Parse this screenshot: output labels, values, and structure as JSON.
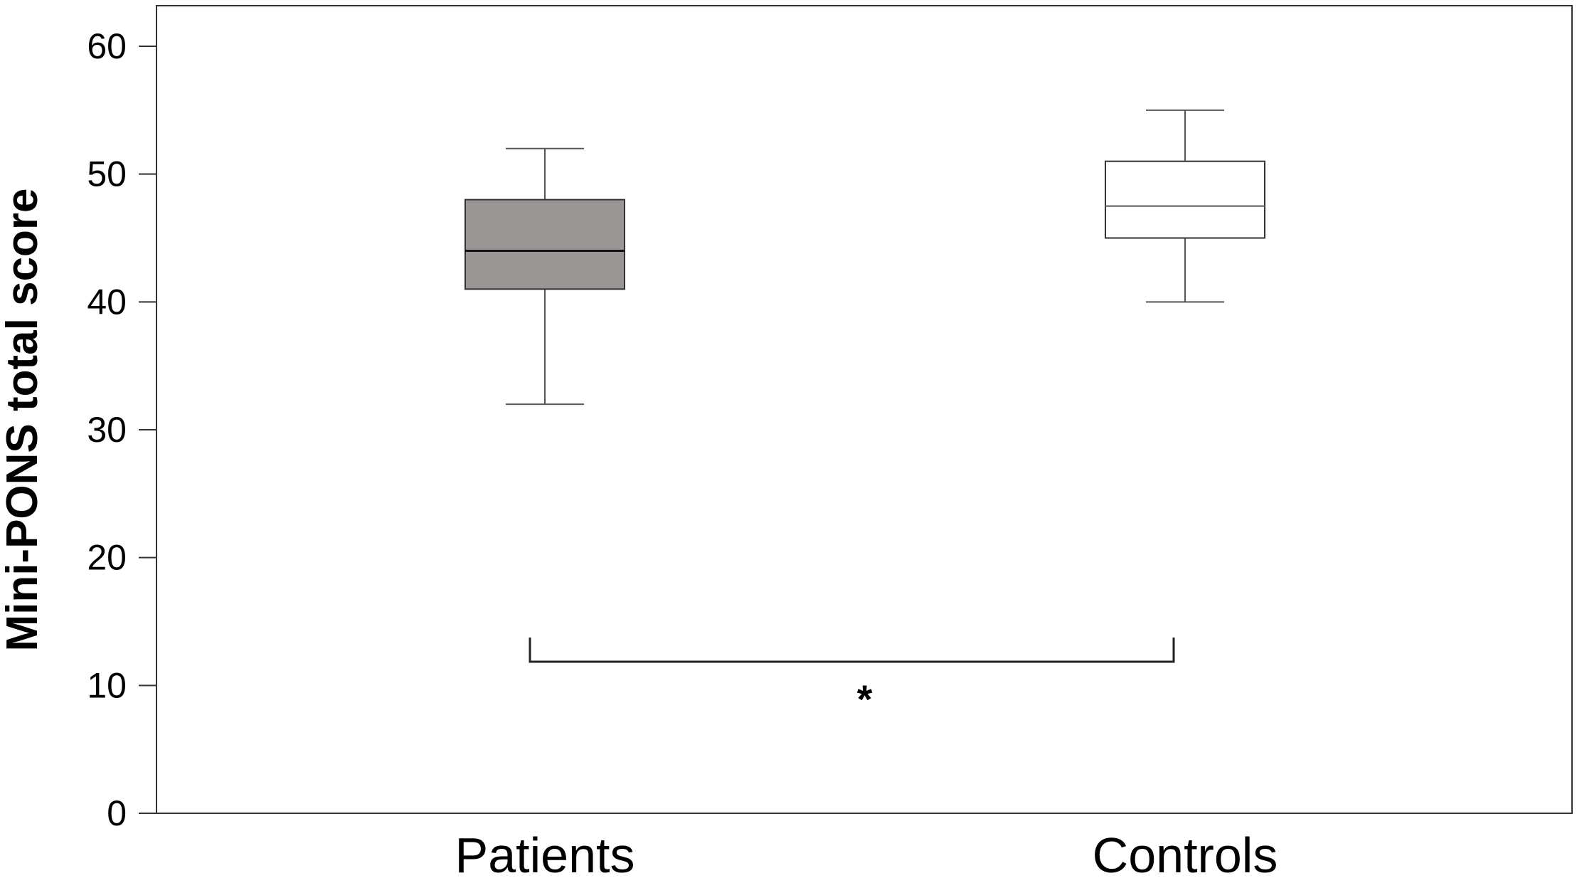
{
  "chart_data": {
    "type": "box",
    "ylabel": "Mini-PONS total score",
    "xlabel": "",
    "ylim": [
      0,
      60
    ],
    "yticks": [
      0,
      10,
      20,
      30,
      40,
      50,
      60
    ],
    "categories": [
      "Patients",
      "Controls"
    ],
    "boxes": [
      {
        "category": "Patients",
        "whisker_low": 32,
        "q1": 41,
        "median": 44,
        "q3": 48,
        "whisker_high": 52,
        "fill": "#999594"
      },
      {
        "category": "Controls",
        "whisker_low": 40,
        "q1": 45,
        "median": 47.5,
        "q3": 51,
        "whisker_high": 55,
        "fill": "#ffffff"
      }
    ],
    "significance": {
      "between": [
        "Patients",
        "Controls"
      ],
      "label": "*"
    },
    "grid": false,
    "colors": {
      "axis": "#333333",
      "line": "#555555"
    }
  }
}
